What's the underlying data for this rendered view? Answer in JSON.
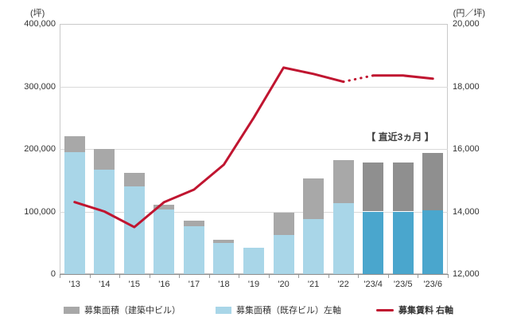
{
  "figure": {
    "background": "#ffffff",
    "annotation": "【 直近3ヵ月 】"
  },
  "colors": {
    "existing_bar": "#a9d6e8",
    "existing_bar_recent": "#4aa6cd",
    "construction_bar": "#a8a8a8",
    "construction_bar_recent": "#8f8f8f",
    "rent_line": "#c01530",
    "gridline": "#d9d9d9",
    "axis_text": "#333333"
  },
  "legend": [
    {
      "label": "募集面積（建築中ビル）",
      "swatch": "construction",
      "bold": false
    },
    {
      "label": "募集面積（既存ビル）左軸",
      "swatch": "existing",
      "bold": false
    },
    {
      "label": "募集賃料 右軸",
      "swatch": "rent-line",
      "bold": true
    }
  ],
  "chart_data": {
    "type": "bar",
    "subtype": "stacked-bars-with-line",
    "categories": [
      "'13",
      "'14",
      "'15",
      "'16",
      "'17",
      "'18",
      "'19",
      "'20",
      "'21",
      "'22",
      "'23/4",
      "'23/5",
      "'23/6"
    ],
    "series": [
      {
        "name": "募集面積（既存ビル）左軸",
        "type": "bar",
        "stack": true,
        "axis": "left",
        "values": [
          195000,
          167000,
          140000,
          103000,
          76000,
          50000,
          42000,
          63000,
          88000,
          113000,
          100000,
          100000,
          102000
        ]
      },
      {
        "name": "募集面積（建築中ビル）",
        "type": "bar",
        "stack": true,
        "axis": "left",
        "values": [
          25000,
          33000,
          22000,
          8000,
          9000,
          5000,
          0,
          35000,
          65000,
          69000,
          78000,
          78000,
          91000
        ]
      },
      {
        "name": "募集賃料 右軸",
        "type": "line",
        "axis": "right",
        "values": [
          14300,
          14000,
          13500,
          14300,
          14700,
          15500,
          17000,
          18600,
          18400,
          18150,
          18350,
          18350,
          18250
        ],
        "dashed_segment_between_indices": [
          9,
          10
        ]
      }
    ],
    "left_axis": {
      "unit": "(坪)",
      "min": 0,
      "max": 400000,
      "ticks": [
        "0",
        "100,000",
        "200,000",
        "300,000",
        "400,000"
      ]
    },
    "right_axis": {
      "unit": "(円／坪)",
      "min": 12000,
      "max": 20000,
      "ticks": [
        "12,000",
        "14,000",
        "16,000",
        "18,000",
        "20,000"
      ]
    },
    "highlight_categories": [
      "'23/4",
      "'23/5",
      "'23/6"
    ],
    "highlight_label": "【 直近3ヵ月 】",
    "grid": true,
    "legend_position": "bottom"
  }
}
